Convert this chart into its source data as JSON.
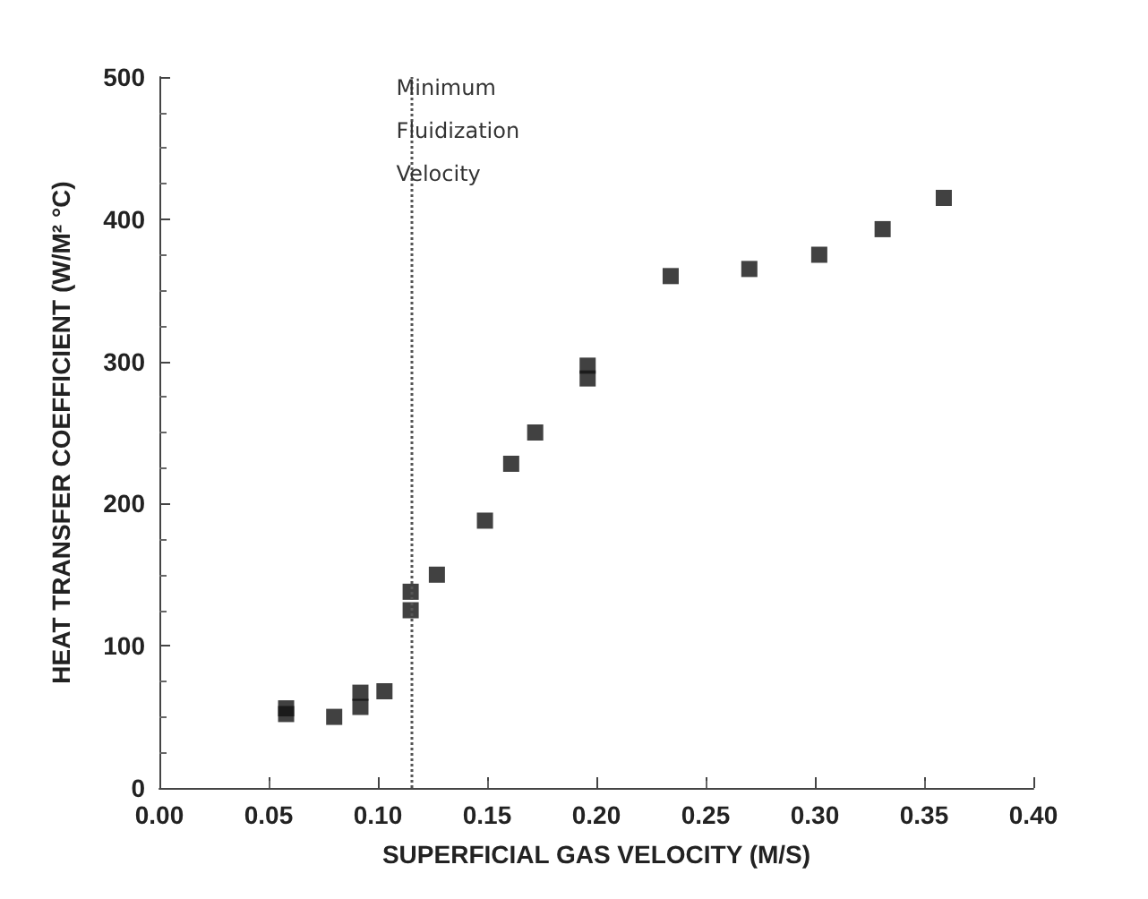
{
  "chart_data": {
    "type": "scatter",
    "xlabel": "SUPERFICIAL GAS VELOCITY (M/S)",
    "ylabel": "HEAT TRANSFER COEFFICIENT (W/M² °C)",
    "x": [
      0.058,
      0.058,
      0.08,
      0.092,
      0.092,
      0.103,
      0.115,
      0.115,
      0.127,
      0.149,
      0.161,
      0.172,
      0.196,
      0.196,
      0.234,
      0.27,
      0.302,
      0.331,
      0.359
    ],
    "values": [
      52,
      56,
      50,
      57,
      67,
      68,
      125,
      138,
      150,
      188,
      228,
      250,
      288,
      297,
      360,
      365,
      375,
      393,
      415
    ],
    "color": "#111111",
    "marker": "square",
    "grid": false,
    "xlim": [
      0,
      0.4
    ],
    "xticks": [
      {
        "value": 0,
        "label": "0.00"
      },
      {
        "value": 0.05,
        "label": "0.05"
      },
      {
        "value": 0.1,
        "label": "0.10"
      },
      {
        "value": 0.15,
        "label": "0.15"
      },
      {
        "value": 0.2,
        "label": "0.20"
      },
      {
        "value": 0.25,
        "label": "0.25"
      },
      {
        "value": 0.3,
        "label": "0.30"
      },
      {
        "value": 0.35,
        "label": "0.35"
      },
      {
        "value": 0.4,
        "label": "0.40"
      }
    ],
    "ylim": [
      0,
      500
    ],
    "yticks": [
      0,
      100,
      200,
      300,
      400,
      500
    ],
    "ref_lines": [
      {
        "axis": "x",
        "value": 0.115,
        "label": "Minimum Fluidization Velocity",
        "line_style": "dotted",
        "color": "#555555"
      }
    ]
  }
}
